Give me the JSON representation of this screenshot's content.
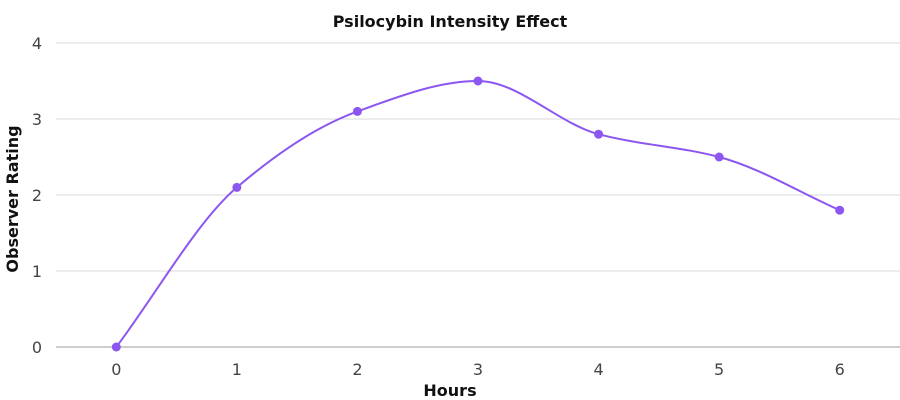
{
  "chart_data": {
    "type": "line",
    "title": "Psilocybin Intensity Effect",
    "xlabel": "Hours",
    "ylabel": "Observer Rating",
    "x": [
      0,
      1,
      2,
      3,
      4,
      5,
      6
    ],
    "xlim": [
      -0.5,
      6.5
    ],
    "ylim": [
      0,
      4
    ],
    "yticks": [
      0,
      1,
      2,
      3,
      4
    ],
    "series": [
      {
        "values": [
          0,
          2.1,
          3.1,
          3.5,
          2.8,
          2.5,
          1.8
        ],
        "color": "#8b57f0"
      }
    ],
    "grid": true,
    "smooth": true,
    "legend": "none",
    "gridColor": "#d9d9d9",
    "axisColor": "#9e9e9e"
  }
}
